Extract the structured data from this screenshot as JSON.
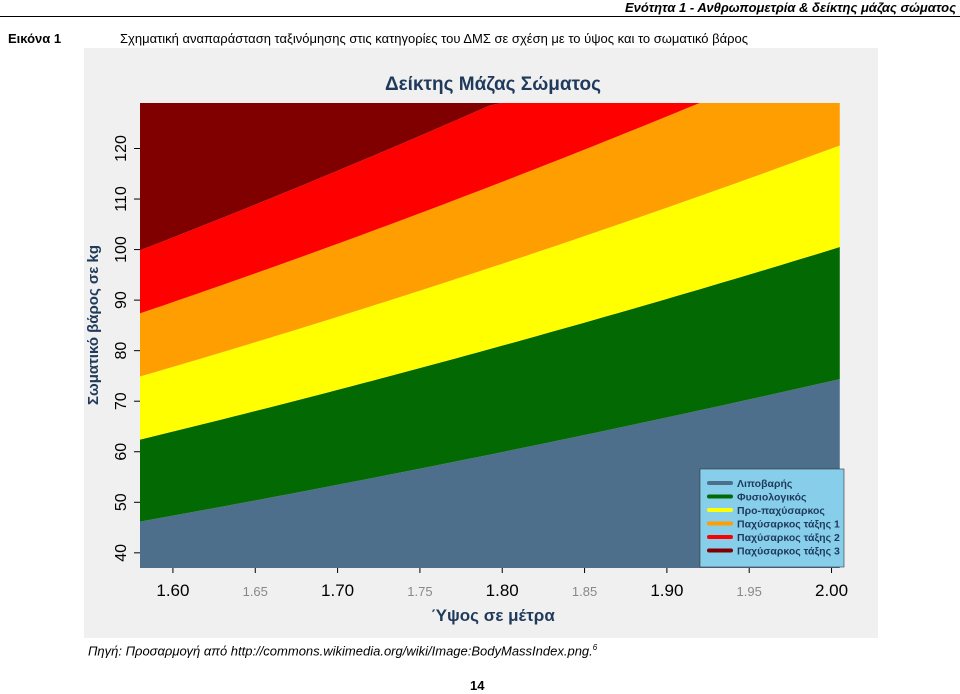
{
  "header": {
    "section_title": "Ενότητα 1 - Ανθρωπομετρία & δείκτης μάζας σώματος"
  },
  "figure": {
    "label": "Εικόνα 1",
    "caption": "Σχηματική αναπαράσταση ταξινόμησης στις κατηγορίες του ΔΜΣ σε σχέση με το ύψος και το σωματικό βάρος"
  },
  "chart_data": {
    "type": "area",
    "title": "Δείκτης Μάζας Σώματος",
    "xlabel": "Ύψος σε μέτρα",
    "ylabel": "Σωματικό βάρος σε kg",
    "xlim": [
      1.58,
      2.01
    ],
    "ylim": [
      37,
      129
    ],
    "x_ticks": [
      {
        "value": 1.6,
        "label": "1.60",
        "major": true
      },
      {
        "value": 1.65,
        "label": "1.65",
        "major": false
      },
      {
        "value": 1.7,
        "label": "1.70",
        "major": true
      },
      {
        "value": 1.75,
        "label": "1.75",
        "major": false
      },
      {
        "value": 1.8,
        "label": "1.80",
        "major": true
      },
      {
        "value": 1.85,
        "label": "1.85",
        "major": false
      },
      {
        "value": 1.9,
        "label": "1.90",
        "major": true
      },
      {
        "value": 1.95,
        "label": "1.95",
        "major": false
      },
      {
        "value": 2.0,
        "label": "2.00",
        "major": true
      }
    ],
    "y_ticks": [
      {
        "value": 40,
        "label": "40"
      },
      {
        "value": 50,
        "label": "50"
      },
      {
        "value": 60,
        "label": "60"
      },
      {
        "value": 70,
        "label": "70"
      },
      {
        "value": 80,
        "label": "80"
      },
      {
        "value": 90,
        "label": "90"
      },
      {
        "value": 100,
        "label": "100"
      },
      {
        "value": 110,
        "label": "110"
      },
      {
        "value": 120,
        "label": "120"
      }
    ],
    "x_domain": [
      1.58,
      2.005
    ],
    "bmi_boundaries": [
      18.5,
      25,
      30,
      35,
      40
    ],
    "series": [
      {
        "name": "Λιποβαρής",
        "bmi_range": [
          0,
          18.5
        ],
        "color": "#4d6f8c"
      },
      {
        "name": "Φυσιολογικός",
        "bmi_range": [
          18.5,
          25
        ],
        "color": "#036903"
      },
      {
        "name": "Προ-παχύσαρκος",
        "bmi_range": [
          25,
          30
        ],
        "color": "#ffff00"
      },
      {
        "name": "Παχύσαρκος τάξης 1",
        "bmi_range": [
          30,
          35
        ],
        "color": "#ff9e00"
      },
      {
        "name": "Παχύσαρκος τάξης 2",
        "bmi_range": [
          35,
          40
        ],
        "color": "#ff0000"
      },
      {
        "name": "Παχύσαρκος τάξης 3",
        "bmi_range": [
          40,
          999
        ],
        "color": "#800000"
      }
    ],
    "legend": {
      "placement": "bottom-right",
      "background": "#87ceeb"
    },
    "grid": false
  },
  "source": {
    "text": "Πηγή: Προσαρμογή από http://commons.wikimedia.org/wiki/Image:BodyMassIndex.png.",
    "footnote": "6"
  },
  "page_number": "14"
}
